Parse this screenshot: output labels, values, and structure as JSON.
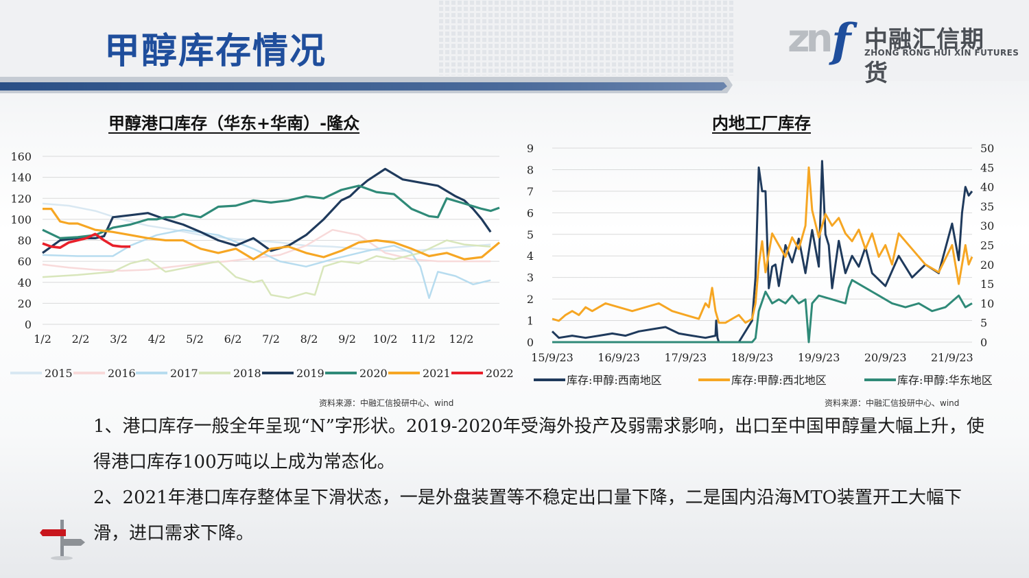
{
  "slide": {
    "title": "甲醇库存情况",
    "logo": {
      "mark": "zn",
      "letter": "f",
      "name_cn": "中融汇信期货",
      "name_en": "ZHONG RONG HUI XIN FUTURES"
    }
  },
  "paragraphs": [
    "1、港口库存一般全年呈现“N”字形状。2019-2020年受海外投产及弱需求影响，出口至中国甲醇量大幅上升，使得港口库存100万吨以上成为常态化。",
    "2、2021年港口库存整体呈下滑状态，一是外盘装置等不稳定出口量下降，二是国内沿海MTO装置开工大幅下滑，进口需求下降。"
  ],
  "chart_data": [
    {
      "type": "line",
      "title": "甲醇港口库存（华东+华南）-隆众",
      "source": "资料来源：中融汇信投研中心、wind",
      "x_ticks": [
        "1/2",
        "2/2",
        "3/2",
        "4/2",
        "5/2",
        "6/2",
        "7/2",
        "8/2",
        "9/2",
        "10/2",
        "11/2",
        "12/2"
      ],
      "ylim": [
        0,
        160
      ],
      "y_ticks": [
        0,
        20,
        40,
        60,
        80,
        100,
        120,
        140,
        160
      ],
      "grid": true,
      "legend": "bottom",
      "x_units": "weeks",
      "x_range": [
        0,
        52
      ],
      "series": [
        {
          "name": "2015",
          "color": "#d9e8f2",
          "width": 2.5,
          "x": [
            0,
            3,
            6,
            9,
            12,
            15,
            18,
            21,
            24,
            27,
            30,
            33,
            36,
            39,
            42,
            45,
            48,
            51
          ],
          "y": [
            115,
            113,
            108,
            100,
            94,
            90,
            85,
            82,
            80,
            78,
            75,
            74,
            72,
            70,
            70,
            72,
            74,
            76
          ]
        },
        {
          "name": "2016",
          "color": "#f8dada",
          "width": 2.5,
          "x": [
            0,
            3,
            6,
            9,
            12,
            15,
            18,
            21,
            24,
            27,
            30,
            33,
            36,
            39,
            42,
            45,
            48,
            51
          ],
          "y": [
            57,
            54,
            52,
            51,
            52,
            55,
            58,
            60,
            63,
            66,
            75,
            90,
            85,
            68,
            62,
            60,
            60,
            60
          ]
        },
        {
          "name": "2017",
          "color": "#b7dcef",
          "width": 2.5,
          "x": [
            0,
            4,
            8,
            10,
            13,
            16,
            20,
            24,
            27,
            30,
            33,
            37,
            40,
            42,
            43,
            44,
            45,
            47,
            49,
            51
          ],
          "y": [
            66,
            65,
            65,
            75,
            85,
            90,
            85,
            72,
            60,
            55,
            62,
            70,
            75,
            68,
            55,
            25,
            50,
            46,
            38,
            42
          ]
        },
        {
          "name": "2018",
          "color": "#d8e6bb",
          "width": 2.5,
          "x": [
            0,
            4,
            8,
            10,
            12,
            14,
            17,
            20,
            22,
            24,
            25,
            26,
            28,
            30,
            31,
            32,
            34,
            36,
            38,
            40,
            43,
            46,
            48,
            51
          ],
          "y": [
            45,
            47,
            50,
            58,
            62,
            50,
            55,
            60,
            45,
            40,
            42,
            28,
            25,
            30,
            28,
            55,
            60,
            58,
            65,
            62,
            68,
            80,
            76,
            74
          ]
        },
        {
          "name": "2019",
          "color": "#1f3a5c",
          "width": 3.2,
          "x": [
            0,
            2,
            4,
            6,
            7,
            8,
            10,
            12,
            14,
            16,
            18,
            20,
            22,
            24,
            26,
            28,
            30,
            32,
            34,
            35,
            36,
            37,
            39,
            41,
            43,
            45,
            47,
            48,
            49,
            50,
            51
          ],
          "y": [
            68,
            80,
            82,
            82,
            84,
            102,
            104,
            106,
            100,
            95,
            88,
            80,
            75,
            82,
            70,
            75,
            85,
            100,
            118,
            122,
            130,
            137,
            148,
            138,
            135,
            132,
            122,
            118,
            110,
            100,
            88
          ]
        },
        {
          "name": "2020",
          "color": "#2f8a78",
          "width": 3.2,
          "x": [
            0,
            2,
            4,
            6,
            8,
            10,
            12,
            13,
            14,
            15,
            16,
            18,
            20,
            22,
            24,
            26,
            28,
            30,
            32,
            34,
            36,
            38,
            40,
            42,
            44,
            45,
            46,
            48,
            50,
            51,
            52
          ],
          "y": [
            90,
            82,
            83,
            85,
            92,
            95,
            100,
            100,
            102,
            102,
            105,
            102,
            112,
            113,
            118,
            116,
            118,
            122,
            120,
            128,
            132,
            126,
            124,
            110,
            103,
            102,
            120,
            115,
            110,
            108,
            111
          ]
        },
        {
          "name": "2021",
          "color": "#f6a623",
          "width": 3.2,
          "x": [
            0,
            1,
            2,
            3,
            4,
            6,
            8,
            10,
            12,
            14,
            16,
            18,
            20,
            22,
            24,
            26,
            28,
            30,
            32,
            34,
            36,
            38,
            40,
            42,
            44,
            46,
            48,
            50,
            52
          ],
          "y": [
            110,
            110,
            98,
            96,
            96,
            90,
            88,
            85,
            82,
            80,
            80,
            72,
            68,
            72,
            62,
            72,
            74,
            68,
            64,
            70,
            78,
            80,
            78,
            72,
            65,
            68,
            62,
            64,
            78
          ]
        },
        {
          "name": "2022",
          "color": "#e8202a",
          "width": 3.6,
          "x": [
            0,
            1,
            2,
            3,
            4,
            5,
            6,
            7,
            8,
            9,
            10
          ],
          "y": [
            77,
            74,
            73,
            78,
            80,
            82,
            86,
            80,
            75,
            74,
            74
          ]
        }
      ]
    },
    {
      "type": "line",
      "title": "内地工厂库存",
      "source": "资料来源：中融汇信投研中心、wind",
      "x_ticks": [
        "15/9/23",
        "16/9/23",
        "17/9/23",
        "18/9/23",
        "19/9/23",
        "20/9/23",
        "21/9/23"
      ],
      "x_range": [
        0,
        6.3
      ],
      "ylim_left": [
        0,
        9
      ],
      "y_ticks_left": [
        0,
        1,
        2,
        3,
        4,
        5,
        6,
        7,
        8,
        9
      ],
      "ylim_right": [
        0,
        50
      ],
      "y_ticks_right": [
        0,
        5,
        10,
        15,
        20,
        25,
        30,
        35,
        40,
        45,
        50
      ],
      "grid": true,
      "legend": "bottom",
      "series": [
        {
          "name": "库存:甲醇:西南地区",
          "color": "#1f3a5c",
          "axis": "left",
          "x": [
            0,
            0.1,
            0.3,
            0.5,
            0.7,
            0.9,
            1.1,
            1.3,
            1.5,
            1.7,
            1.9,
            2.1,
            2.3,
            2.45,
            2.46,
            2.48,
            2.5,
            2.6,
            2.8,
            3.0,
            3.05,
            3.1,
            3.15,
            3.2,
            3.25,
            3.3,
            3.35,
            3.4,
            3.5,
            3.6,
            3.7,
            3.8,
            3.9,
            4.0,
            4.05,
            4.1,
            4.15,
            4.2,
            4.3,
            4.4,
            4.5,
            4.6,
            4.7,
            4.8,
            5.0,
            5.2,
            5.4,
            5.6,
            5.8,
            6.0,
            6.1,
            6.15,
            6.2,
            6.25,
            6.3
          ],
          "y": [
            0.5,
            0.2,
            0.3,
            0.2,
            0.3,
            0.4,
            0.3,
            0.5,
            0.6,
            0.7,
            0.4,
            0.3,
            0.2,
            0.3,
            1.0,
            0.2,
            0.0,
            0.0,
            0.0,
            1.0,
            3.0,
            8.1,
            7.0,
            7.0,
            2.5,
            3.5,
            3.6,
            2.6,
            4.5,
            3.7,
            4.8,
            3.2,
            5.2,
            3.5,
            8.4,
            5.0,
            4.5,
            2.5,
            4.7,
            3.2,
            4.0,
            3.5,
            4.4,
            3.2,
            2.6,
            4.0,
            3.0,
            3.6,
            3.2,
            5.5,
            3.8,
            6.0,
            7.2,
            6.8,
            7.0
          ]
        },
        {
          "name": "库存:甲醇:西北地区",
          "color": "#f6a623",
          "axis": "right",
          "x": [
            0,
            0.1,
            0.2,
            0.3,
            0.4,
            0.5,
            0.6,
            0.8,
            1.0,
            1.2,
            1.4,
            1.6,
            1.8,
            2.0,
            2.2,
            2.3,
            2.35,
            2.4,
            2.45,
            2.5,
            2.6,
            2.7,
            2.8,
            2.9,
            3.0,
            3.05,
            3.1,
            3.15,
            3.2,
            3.3,
            3.4,
            3.5,
            3.6,
            3.7,
            3.8,
            3.85,
            3.9,
            4.0,
            4.1,
            4.2,
            4.3,
            4.4,
            4.5,
            4.6,
            4.7,
            4.8,
            4.9,
            5.0,
            5.1,
            5.2,
            5.4,
            5.6,
            5.8,
            6.0,
            6.1,
            6.15,
            6.2,
            6.25,
            6.3
          ],
          "y": [
            6,
            5.5,
            7,
            8,
            7,
            9,
            8,
            10,
            9,
            8,
            9,
            10,
            8,
            7,
            6,
            10,
            9,
            14,
            8,
            5,
            5,
            6,
            7,
            5,
            6,
            10,
            20,
            26,
            18,
            28,
            25,
            22,
            27,
            24,
            30,
            45,
            34,
            27,
            33,
            30,
            32,
            28,
            26,
            29,
            24,
            28,
            22,
            25,
            20,
            28,
            24,
            20,
            18,
            25,
            15,
            20,
            25,
            20,
            22
          ]
        },
        {
          "name": "库存:甲醇:华东地区",
          "color": "#2f8a78",
          "axis": "right",
          "x": [
            0,
            0.3,
            0.6,
            0.9,
            1.2,
            1.5,
            1.8,
            2.1,
            2.4,
            2.7,
            3.0,
            3.05,
            3.1,
            3.2,
            3.3,
            3.4,
            3.5,
            3.6,
            3.7,
            3.8,
            3.85,
            3.9,
            4.0,
            4.2,
            4.4,
            4.45,
            4.5,
            4.7,
            4.9,
            5.1,
            5.3,
            5.5,
            5.7,
            5.9,
            6.1,
            6.2,
            6.3
          ],
          "y": [
            0,
            0,
            0,
            0,
            0,
            0,
            0,
            0,
            0,
            0,
            0,
            1,
            8,
            13,
            10,
            11,
            10,
            12,
            10,
            11,
            0,
            10,
            12,
            11,
            10,
            14,
            16,
            14,
            12,
            10,
            9,
            10,
            8,
            9,
            12,
            9,
            10
          ]
        }
      ]
    }
  ]
}
